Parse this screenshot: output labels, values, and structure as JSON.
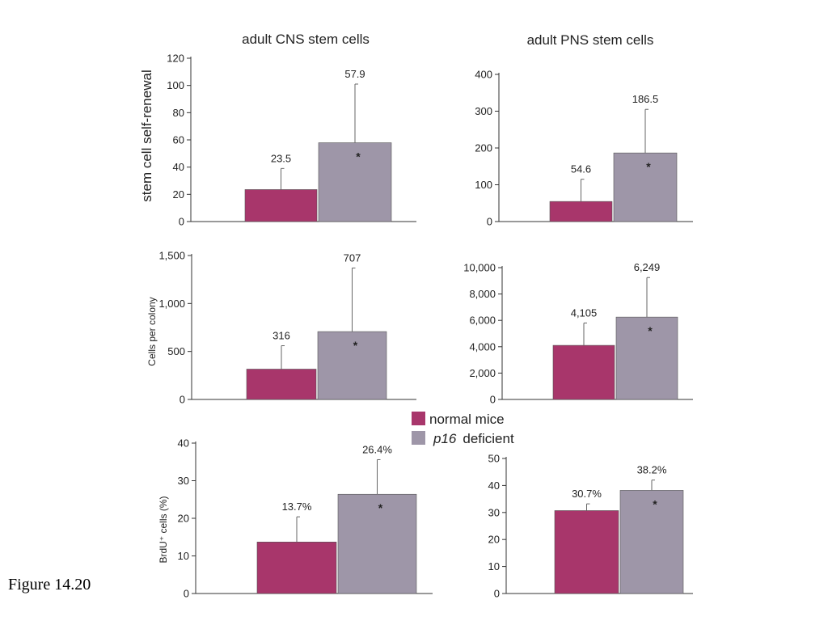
{
  "figure": {
    "caption": "Figure 14.20"
  },
  "columns": [
    "adult CNS stem cells",
    "adult PNS stem cells"
  ],
  "row_labels": [
    "stem cell self-renewal",
    "Cells per colony",
    "BrdU⁺ cells (%)"
  ],
  "legend": {
    "items": [
      {
        "label": "normal mice",
        "italic_prefix": "",
        "color": "#a8366b"
      },
      {
        "label": "deficient",
        "italic_prefix": "p16",
        "color": "#9e96a8"
      }
    ]
  },
  "colors": {
    "normal": "#a8366b",
    "deficient": "#9e96a8"
  },
  "chart_data": [
    {
      "type": "bar",
      "title": "adult CNS stem cells",
      "ylabel": "stem cell self-renewal",
      "categories": [
        "normal mice",
        "p16 deficient"
      ],
      "values": [
        23.5,
        57.9
      ],
      "value_labels": [
        "23.5",
        "57.9"
      ],
      "error_upper": [
        39,
        101
      ],
      "significance": [
        "",
        "*"
      ],
      "ylim": [
        0,
        120
      ],
      "yticks": [
        0,
        20,
        40,
        60,
        80,
        100,
        120
      ],
      "ytick_labels": [
        "0",
        "20",
        "40",
        "60",
        "80",
        "100",
        "120"
      ]
    },
    {
      "type": "bar",
      "title": "adult PNS stem cells",
      "ylabel": "",
      "categories": [
        "normal mice",
        "p16 deficient"
      ],
      "values": [
        54.6,
        186.5
      ],
      "value_labels": [
        "54.6",
        "186.5"
      ],
      "error_upper": [
        115,
        305
      ],
      "significance": [
        "",
        "*"
      ],
      "ylim": [
        0,
        400
      ],
      "yticks": [
        0,
        100,
        200,
        300,
        400
      ],
      "ytick_labels": [
        "0",
        "100",
        "200",
        "300",
        "400"
      ]
    },
    {
      "type": "bar",
      "title": "",
      "ylabel": "Cells per colony",
      "categories": [
        "normal mice",
        "p16 deficient"
      ],
      "values": [
        316,
        707
      ],
      "value_labels": [
        "316",
        "707"
      ],
      "error_upper": [
        560,
        1370
      ],
      "significance": [
        "",
        "*"
      ],
      "ylim": [
        0,
        1500
      ],
      "yticks": [
        0,
        500,
        1000,
        1500
      ],
      "ytick_labels": [
        "0",
        "500",
        "1,000",
        "1,500"
      ]
    },
    {
      "type": "bar",
      "title": "",
      "ylabel": "",
      "categories": [
        "normal mice",
        "p16 deficient"
      ],
      "values": [
        4105,
        6249
      ],
      "value_labels": [
        "4,105",
        "6,249"
      ],
      "error_upper": [
        5800,
        9250
      ],
      "significance": [
        "",
        "*"
      ],
      "ylim": [
        0,
        10000
      ],
      "yticks": [
        0,
        2000,
        4000,
        6000,
        8000,
        10000
      ],
      "ytick_labels": [
        "0",
        "2,000",
        "4,000",
        "6,000",
        "8,000",
        "10,000"
      ]
    },
    {
      "type": "bar",
      "title": "",
      "ylabel": "BrdU⁺ cells (%)",
      "categories": [
        "normal mice",
        "p16 deficient"
      ],
      "values": [
        13.7,
        26.4
      ],
      "value_labels": [
        "13.7%",
        "26.4%"
      ],
      "error_upper": [
        20.4,
        35.6
      ],
      "significance": [
        "",
        "*"
      ],
      "ylim": [
        0,
        40
      ],
      "yticks": [
        0,
        10,
        20,
        30,
        40
      ],
      "ytick_labels": [
        "0",
        "10",
        "20",
        "30",
        "40"
      ]
    },
    {
      "type": "bar",
      "title": "",
      "ylabel": "",
      "categories": [
        "normal mice",
        "p16 deficient"
      ],
      "values": [
        30.7,
        38.2
      ],
      "value_labels": [
        "30.7%",
        "38.2%"
      ],
      "error_upper": [
        33.2,
        42
      ],
      "significance": [
        "",
        "*"
      ],
      "ylim": [
        0,
        50
      ],
      "yticks": [
        0,
        10,
        20,
        30,
        40,
        50
      ],
      "ytick_labels": [
        "0",
        "10",
        "20",
        "30",
        "40",
        "50"
      ]
    }
  ]
}
